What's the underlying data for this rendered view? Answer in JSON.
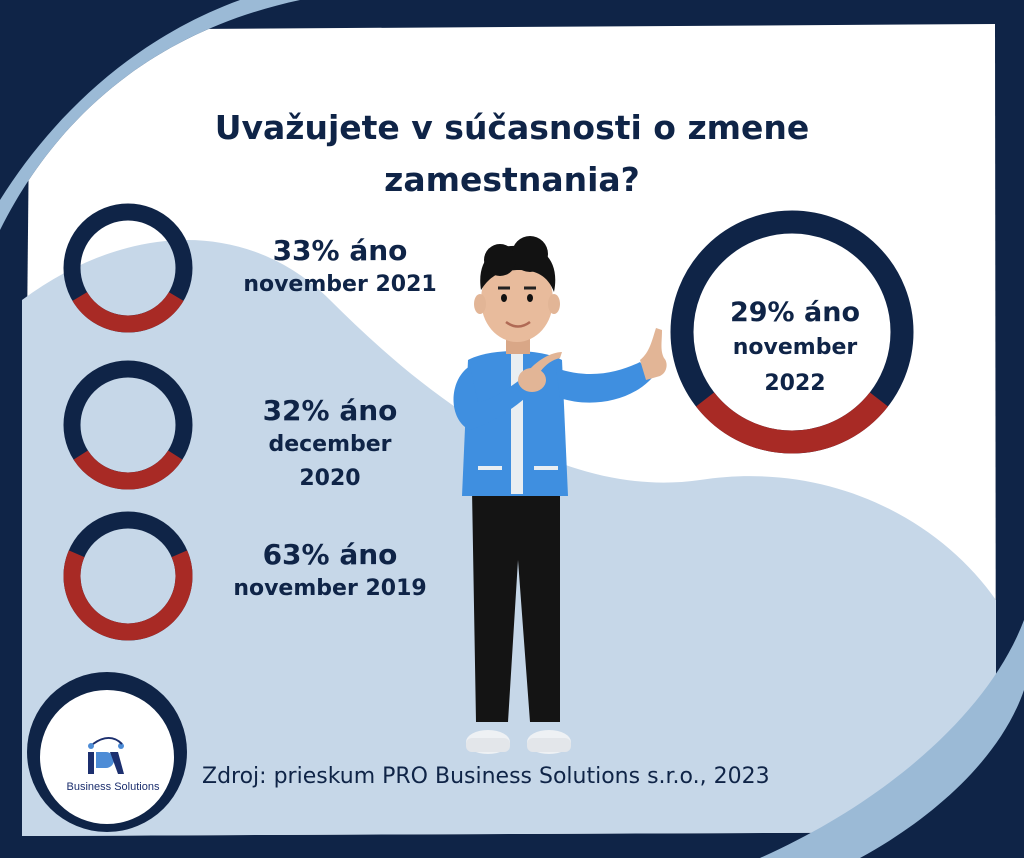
{
  "title": "Uvažujete v súčasnosti o zmene zamestnania?",
  "source": "Zdroj: prieskum PRO Business Solutions s.r.o., 2023",
  "logo": {
    "mark": "PRO",
    "name": "Business Solutions"
  },
  "colors": {
    "navy": "#0f2447",
    "red": "#a82a25",
    "light_blue": "#c6d7e8",
    "mid_blue": "#9bbad6",
    "shirt_blue": "#3f8fe0"
  },
  "chart_data": {
    "type": "pie",
    "title": "Uvažujete v súčasnosti o zmene zamestnania?",
    "items": [
      {
        "percent_label": "33% áno",
        "period": "november 2021",
        "value": 33
      },
      {
        "percent_label": "32% áno",
        "period": "december 2020",
        "value": 32
      },
      {
        "percent_label": "63% áno",
        "period": "november 2019",
        "value": 63
      },
      {
        "percent_label": "29% áno",
        "period": "november 2022",
        "value": 29
      }
    ]
  }
}
